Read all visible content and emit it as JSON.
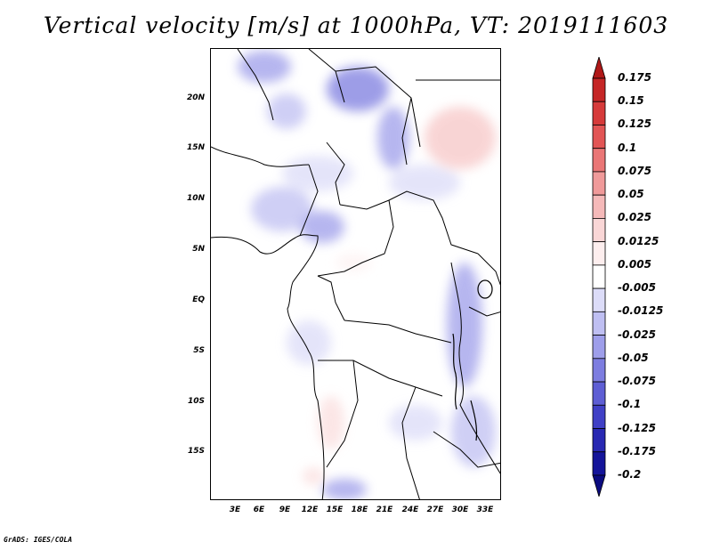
{
  "title": "Vertical velocity [m/s] at 1000hPa, VT: 2019111603",
  "map": {
    "lat_labels": [
      "20N",
      "15N",
      "10N",
      "5N",
      "EQ",
      "5S",
      "10S",
      "15S"
    ],
    "lon_labels": [
      "3E",
      "6E",
      "9E",
      "12E",
      "15E",
      "18E",
      "21E",
      "24E",
      "27E",
      "30E",
      "33E"
    ]
  },
  "colorbar": {
    "levels": [
      "0.175",
      "0.15",
      "0.125",
      "0.1",
      "0.075",
      "0.05",
      "0.025",
      "0.0125",
      "0.005",
      "-0.005",
      "-0.0125",
      "-0.025",
      "-0.05",
      "-0.075",
      "-0.1",
      "-0.125",
      "-0.175",
      "-0.2"
    ],
    "colors": [
      "#b01818",
      "#c52626",
      "#d63a3a",
      "#e25555",
      "#ea7676",
      "#f09a9a",
      "#f5b9b9",
      "#f9d6d6",
      "#fdeeee",
      "#ffffff",
      "#dcdcf8",
      "#bfbff2",
      "#9e9eea",
      "#7d7de0",
      "#5e5ed4",
      "#4040c6",
      "#2828b2",
      "#14149a",
      "#0b0b80"
    ]
  },
  "footer": "GrADS: IGES/COLA"
}
